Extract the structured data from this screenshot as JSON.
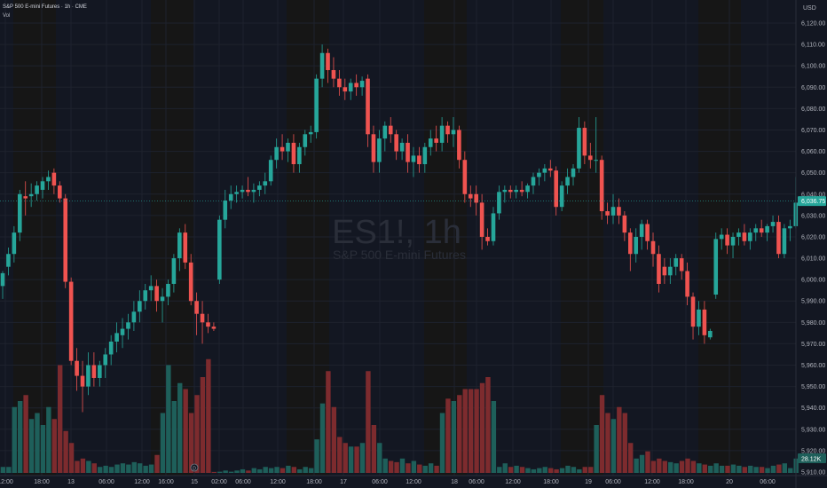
{
  "header": {
    "symbol_line": "S&P 500 E-mini Futures · 1h · CME",
    "volume_label": "Vol"
  },
  "watermark": {
    "ticker": "ES1!, 1h",
    "name": "S&P 500 E-mini Futures"
  },
  "colors": {
    "up": "#26a69a",
    "down": "#ef5350",
    "up_volume": "#1e5f5a",
    "down_volume": "#7d2b2e",
    "background": "#131722",
    "session_shade": "#161616",
    "price_tag": "#26a69a",
    "volume_tag": "#1e5f5a"
  },
  "chart_data": {
    "type": "candlestick",
    "currency": "USD",
    "y_ticks": [
      "6,120.00",
      "6,110.00",
      "6,100.00",
      "6,090.00",
      "6,080.00",
      "6,070.00",
      "6,060.00",
      "6,050.00",
      "6,040.00",
      "6,030.00",
      "6,020.00",
      "6,010.00",
      "6,000.00",
      "5,990.00",
      "5,980.00",
      "5,970.00",
      "5,960.00",
      "5,950.00",
      "5,940.00",
      "5,930.00",
      "5,920.00",
      "5,910.00"
    ],
    "y_range": [
      5910,
      6120
    ],
    "x_ticks": [
      "12:00",
      "18:00",
      "13",
      "06:00",
      "12:00",
      "16:00",
      "15",
      "02:00",
      "06:00",
      "12:00",
      "18:00",
      "17",
      "06:00",
      "12:00",
      "18",
      "06:00",
      "12:00",
      "18:00",
      "19",
      "06:00",
      "12:00",
      "18:00",
      "20",
      "06:00"
    ],
    "last_price": "6,036.75",
    "last_volume": "28.12K",
    "session_marker": "D",
    "candles": [
      {
        "o": 5997,
        "h": 6004,
        "l": 5991,
        "c": 6003,
        "up": true
      },
      {
        "o": 6006,
        "h": 6015,
        "l": 6002,
        "c": 6012,
        "up": true
      },
      {
        "o": 6012,
        "h": 6025,
        "l": 6008,
        "c": 6022,
        "up": true
      },
      {
        "o": 6022,
        "h": 6042,
        "l": 6018,
        "c": 6040,
        "up": true
      },
      {
        "o": 6038,
        "h": 6046,
        "l": 6030,
        "c": 6039,
        "up": false
      },
      {
        "o": 6039,
        "h": 6045,
        "l": 6034,
        "c": 6040,
        "up": true
      },
      {
        "o": 6040,
        "h": 6046,
        "l": 6037,
        "c": 6044,
        "up": true
      },
      {
        "o": 6042,
        "h": 6048,
        "l": 6038,
        "c": 6046,
        "up": true
      },
      {
        "o": 6046,
        "h": 6051,
        "l": 6042,
        "c": 6048,
        "up": true
      },
      {
        "o": 6050,
        "h": 6052,
        "l": 6040,
        "c": 6044,
        "up": false
      },
      {
        "o": 6044,
        "h": 6046,
        "l": 6036,
        "c": 6038,
        "up": false
      },
      {
        "o": 6038,
        "h": 6040,
        "l": 5996,
        "c": 5999,
        "up": false
      },
      {
        "o": 5999,
        "h": 6001,
        "l": 5960,
        "c": 5962,
        "up": false
      },
      {
        "o": 5962,
        "h": 5968,
        "l": 5948,
        "c": 5955,
        "up": false
      },
      {
        "o": 5955,
        "h": 5962,
        "l": 5938,
        "c": 5950,
        "up": false
      },
      {
        "o": 5950,
        "h": 5966,
        "l": 5946,
        "c": 5960,
        "up": true
      },
      {
        "o": 5960,
        "h": 5966,
        "l": 5950,
        "c": 5954,
        "up": false
      },
      {
        "o": 5954,
        "h": 5962,
        "l": 5950,
        "c": 5960,
        "up": true
      },
      {
        "o": 5960,
        "h": 5968,
        "l": 5954,
        "c": 5965,
        "up": true
      },
      {
        "o": 5965,
        "h": 5974,
        "l": 5960,
        "c": 5971,
        "up": true
      },
      {
        "o": 5971,
        "h": 5980,
        "l": 5966,
        "c": 5975,
        "up": true
      },
      {
        "o": 5974,
        "h": 5982,
        "l": 5968,
        "c": 5977,
        "up": true
      },
      {
        "o": 5977,
        "h": 5984,
        "l": 5972,
        "c": 5980,
        "up": true
      },
      {
        "o": 5980,
        "h": 5990,
        "l": 5976,
        "c": 5985,
        "up": true
      },
      {
        "o": 5985,
        "h": 5995,
        "l": 5980,
        "c": 5990,
        "up": true
      },
      {
        "o": 5990,
        "h": 5998,
        "l": 5986,
        "c": 5995,
        "up": true
      },
      {
        "o": 5995,
        "h": 6002,
        "l": 5990,
        "c": 5997,
        "up": true
      },
      {
        "o": 5997,
        "h": 6000,
        "l": 5985,
        "c": 5990,
        "up": false
      },
      {
        "o": 5990,
        "h": 5996,
        "l": 5980,
        "c": 5992,
        "up": true
      },
      {
        "o": 5992,
        "h": 6000,
        "l": 5988,
        "c": 5998,
        "up": true
      },
      {
        "o": 5998,
        "h": 6012,
        "l": 5994,
        "c": 6010,
        "up": true
      },
      {
        "o": 6010,
        "h": 6024,
        "l": 6004,
        "c": 6022,
        "up": true
      },
      {
        "o": 6022,
        "h": 6026,
        "l": 6005,
        "c": 6008,
        "up": false
      },
      {
        "o": 6008,
        "h": 6012,
        "l": 5988,
        "c": 5990,
        "up": false
      },
      {
        "o": 5990,
        "h": 5994,
        "l": 5974,
        "c": 5984,
        "up": false
      },
      {
        "o": 5984,
        "h": 5990,
        "l": 5970,
        "c": 5980,
        "up": false
      },
      {
        "o": 5980,
        "h": 5984,
        "l": 5975,
        "c": 5978,
        "up": false
      },
      {
        "o": 5978,
        "h": 5980,
        "l": 5976,
        "c": 5977,
        "up": false
      },
      {
        "o": 6000,
        "h": 6030,
        "l": 5998,
        "c": 6028,
        "up": true
      },
      {
        "o": 6028,
        "h": 6042,
        "l": 6024,
        "c": 6037,
        "up": true
      },
      {
        "o": 6037,
        "h": 6044,
        "l": 6033,
        "c": 6040,
        "up": true
      },
      {
        "o": 6040,
        "h": 6044,
        "l": 6036,
        "c": 6041,
        "up": true
      },
      {
        "o": 6041,
        "h": 6044,
        "l": 6038,
        "c": 6042,
        "up": true
      },
      {
        "o": 6042,
        "h": 6048,
        "l": 6039,
        "c": 6041,
        "up": false
      },
      {
        "o": 6041,
        "h": 6045,
        "l": 6036,
        "c": 6042,
        "up": true
      },
      {
        "o": 6042,
        "h": 6046,
        "l": 6039,
        "c": 6044,
        "up": true
      },
      {
        "o": 6044,
        "h": 6050,
        "l": 6040,
        "c": 6046,
        "up": true
      },
      {
        "o": 6046,
        "h": 6058,
        "l": 6044,
        "c": 6056,
        "up": true
      },
      {
        "o": 6056,
        "h": 6066,
        "l": 6052,
        "c": 6062,
        "up": true
      },
      {
        "o": 6062,
        "h": 6068,
        "l": 6056,
        "c": 6060,
        "up": false
      },
      {
        "o": 6060,
        "h": 6066,
        "l": 6055,
        "c": 6064,
        "up": true
      },
      {
        "o": 6064,
        "h": 6068,
        "l": 6050,
        "c": 6054,
        "up": false
      },
      {
        "o": 6054,
        "h": 6064,
        "l": 6050,
        "c": 6062,
        "up": true
      },
      {
        "o": 6062,
        "h": 6070,
        "l": 6058,
        "c": 6068,
        "up": true
      },
      {
        "o": 6068,
        "h": 6072,
        "l": 6064,
        "c": 6069,
        "up": true
      },
      {
        "o": 6069,
        "h": 6096,
        "l": 6066,
        "c": 6094,
        "up": true
      },
      {
        "o": 6094,
        "h": 6110,
        "l": 6090,
        "c": 6106,
        "up": true
      },
      {
        "o": 6106,
        "h": 6108,
        "l": 6092,
        "c": 6098,
        "up": false
      },
      {
        "o": 6098,
        "h": 6104,
        "l": 6090,
        "c": 6094,
        "up": false
      },
      {
        "o": 6094,
        "h": 6098,
        "l": 6086,
        "c": 6090,
        "up": false
      },
      {
        "o": 6090,
        "h": 6094,
        "l": 6084,
        "c": 6088,
        "up": false
      },
      {
        "o": 6088,
        "h": 6094,
        "l": 6084,
        "c": 6092,
        "up": true
      },
      {
        "o": 6092,
        "h": 6096,
        "l": 6086,
        "c": 6090,
        "up": false
      },
      {
        "o": 6090,
        "h": 6095,
        "l": 6086,
        "c": 6093,
        "up": true
      },
      {
        "o": 6094,
        "h": 6096,
        "l": 6062,
        "c": 6068,
        "up": false
      },
      {
        "o": 6068,
        "h": 6072,
        "l": 6050,
        "c": 6055,
        "up": false
      },
      {
        "o": 6055,
        "h": 6070,
        "l": 6050,
        "c": 6066,
        "up": true
      },
      {
        "o": 6066,
        "h": 6074,
        "l": 6060,
        "c": 6072,
        "up": true
      },
      {
        "o": 6072,
        "h": 6076,
        "l": 6064,
        "c": 6068,
        "up": false
      },
      {
        "o": 6068,
        "h": 6070,
        "l": 6056,
        "c": 6060,
        "up": false
      },
      {
        "o": 6060,
        "h": 6066,
        "l": 6056,
        "c": 6064,
        "up": true
      },
      {
        "o": 6064,
        "h": 6068,
        "l": 6050,
        "c": 6055,
        "up": false
      },
      {
        "o": 6055,
        "h": 6062,
        "l": 6048,
        "c": 6058,
        "up": true
      },
      {
        "o": 6058,
        "h": 6062,
        "l": 6050,
        "c": 6054,
        "up": false
      },
      {
        "o": 6054,
        "h": 6064,
        "l": 6050,
        "c": 6062,
        "up": true
      },
      {
        "o": 6062,
        "h": 6070,
        "l": 6058,
        "c": 6066,
        "up": true
      },
      {
        "o": 6066,
        "h": 6072,
        "l": 6060,
        "c": 6064,
        "up": false
      },
      {
        "o": 6064,
        "h": 6076,
        "l": 6060,
        "c": 6072,
        "up": true
      },
      {
        "o": 6072,
        "h": 6074,
        "l": 6064,
        "c": 6068,
        "up": false
      },
      {
        "o": 6068,
        "h": 6076,
        "l": 6062,
        "c": 6070,
        "up": true
      },
      {
        "o": 6070,
        "h": 6072,
        "l": 6052,
        "c": 6056,
        "up": false
      },
      {
        "o": 6056,
        "h": 6060,
        "l": 6036,
        "c": 6040,
        "up": false
      },
      {
        "o": 6040,
        "h": 6044,
        "l": 6034,
        "c": 6038,
        "up": false
      },
      {
        "o": 6040,
        "h": 6044,
        "l": 6030,
        "c": 6036,
        "up": false
      },
      {
        "o": 6036,
        "h": 6040,
        "l": 6014,
        "c": 6020,
        "up": false
      },
      {
        "o": 6020,
        "h": 6024,
        "l": 6016,
        "c": 6018,
        "up": false
      },
      {
        "o": 6018,
        "h": 6034,
        "l": 6016,
        "c": 6031,
        "up": true
      },
      {
        "o": 6031,
        "h": 6044,
        "l": 6028,
        "c": 6041,
        "up": true
      },
      {
        "o": 6041,
        "h": 6044,
        "l": 6036,
        "c": 6042,
        "up": true
      },
      {
        "o": 6042,
        "h": 6044,
        "l": 6038,
        "c": 6041,
        "up": false
      },
      {
        "o": 6041,
        "h": 6044,
        "l": 6038,
        "c": 6042,
        "up": true
      },
      {
        "o": 6042,
        "h": 6046,
        "l": 6039,
        "c": 6041,
        "up": false
      },
      {
        "o": 6041,
        "h": 6045,
        "l": 6038,
        "c": 6044,
        "up": true
      },
      {
        "o": 6044,
        "h": 6050,
        "l": 6040,
        "c": 6048,
        "up": true
      },
      {
        "o": 6048,
        "h": 6052,
        "l": 6044,
        "c": 6050,
        "up": true
      },
      {
        "o": 6050,
        "h": 6054,
        "l": 6046,
        "c": 6052,
        "up": true
      },
      {
        "o": 6052,
        "h": 6056,
        "l": 6048,
        "c": 6051,
        "up": false
      },
      {
        "o": 6051,
        "h": 6053,
        "l": 6030,
        "c": 6034,
        "up": false
      },
      {
        "o": 6034,
        "h": 6046,
        "l": 6032,
        "c": 6044,
        "up": true
      },
      {
        "o": 6044,
        "h": 6052,
        "l": 6040,
        "c": 6048,
        "up": true
      },
      {
        "o": 6048,
        "h": 6054,
        "l": 6044,
        "c": 6052,
        "up": true
      },
      {
        "o": 6052,
        "h": 6076,
        "l": 6050,
        "c": 6071,
        "up": true
      },
      {
        "o": 6071,
        "h": 6074,
        "l": 6054,
        "c": 6058,
        "up": false
      },
      {
        "o": 6058,
        "h": 6064,
        "l": 6052,
        "c": 6056,
        "up": false
      },
      {
        "o": 6056,
        "h": 6076,
        "l": 6050,
        "c": 6056,
        "up": true
      },
      {
        "o": 6056,
        "h": 6058,
        "l": 6028,
        "c": 6032,
        "up": false
      },
      {
        "o": 6032,
        "h": 6036,
        "l": 6026,
        "c": 6030,
        "up": false
      },
      {
        "o": 6030,
        "h": 6040,
        "l": 6026,
        "c": 6034,
        "up": true
      },
      {
        "o": 6034,
        "h": 6038,
        "l": 6026,
        "c": 6030,
        "up": false
      },
      {
        "o": 6030,
        "h": 6032,
        "l": 6018,
        "c": 6022,
        "up": false
      },
      {
        "o": 6022,
        "h": 6024,
        "l": 6004,
        "c": 6012,
        "up": false
      },
      {
        "o": 6012,
        "h": 6024,
        "l": 6008,
        "c": 6020,
        "up": true
      },
      {
        "o": 6020,
        "h": 6028,
        "l": 6014,
        "c": 6026,
        "up": true
      },
      {
        "o": 6026,
        "h": 6028,
        "l": 6014,
        "c": 6018,
        "up": false
      },
      {
        "o": 6018,
        "h": 6022,
        "l": 6006,
        "c": 6012,
        "up": false
      },
      {
        "o": 6012,
        "h": 6016,
        "l": 5994,
        "c": 5998,
        "up": false
      },
      {
        "o": 6006,
        "h": 6010,
        "l": 5998,
        "c": 6002,
        "up": false
      },
      {
        "o": 6002,
        "h": 6010,
        "l": 5998,
        "c": 6006,
        "up": true
      },
      {
        "o": 6006,
        "h": 6012,
        "l": 6002,
        "c": 6010,
        "up": true
      },
      {
        "o": 6010,
        "h": 6012,
        "l": 6000,
        "c": 6004,
        "up": false
      },
      {
        "o": 6004,
        "h": 6008,
        "l": 5988,
        "c": 5992,
        "up": false
      },
      {
        "o": 5992,
        "h": 5994,
        "l": 5972,
        "c": 5978,
        "up": false
      },
      {
        "o": 5978,
        "h": 5990,
        "l": 5974,
        "c": 5986,
        "up": true
      },
      {
        "o": 5986,
        "h": 5990,
        "l": 5970,
        "c": 5974,
        "up": false
      },
      {
        "o": 5973,
        "h": 5977,
        "l": 5972,
        "c": 5976,
        "up": true
      },
      {
        "o": 5993,
        "h": 6022,
        "l": 5991,
        "c": 6019,
        "up": true
      },
      {
        "o": 6019,
        "h": 6024,
        "l": 6014,
        "c": 6021,
        "up": true
      },
      {
        "o": 6021,
        "h": 6024,
        "l": 6012,
        "c": 6016,
        "up": false
      },
      {
        "o": 6016,
        "h": 6022,
        "l": 6010,
        "c": 6020,
        "up": true
      },
      {
        "o": 6020,
        "h": 6024,
        "l": 6016,
        "c": 6022,
        "up": true
      },
      {
        "o": 6022,
        "h": 6026,
        "l": 6016,
        "c": 6018,
        "up": false
      },
      {
        "o": 6018,
        "h": 6024,
        "l": 6014,
        "c": 6022,
        "up": true
      },
      {
        "o": 6022,
        "h": 6026,
        "l": 6018,
        "c": 6024,
        "up": true
      },
      {
        "o": 6024,
        "h": 6028,
        "l": 6020,
        "c": 6022,
        "up": false
      },
      {
        "o": 6022,
        "h": 6026,
        "l": 6018,
        "c": 6025,
        "up": true
      },
      {
        "o": 6025,
        "h": 6030,
        "l": 6022,
        "c": 6027,
        "up": true
      },
      {
        "o": 6027,
        "h": 6030,
        "l": 6010,
        "c": 6012,
        "up": false
      },
      {
        "o": 6012,
        "h": 6026,
        "l": 6010,
        "c": 6024,
        "up": true
      },
      {
        "o": 6024,
        "h": 6028,
        "l": 6018,
        "c": 6025,
        "up": true
      },
      {
        "o": 6025,
        "h": 6048,
        "l": 6024,
        "c": 6036,
        "up": true
      }
    ],
    "volumes": [
      0.05,
      0.05,
      0.55,
      0.6,
      0.65,
      0.45,
      0.5,
      0.4,
      0.55,
      0.45,
      0.9,
      0.35,
      0.25,
      0.1,
      0.12,
      0.1,
      0.08,
      0.05,
      0.06,
      0.05,
      0.07,
      0.08,
      0.07,
      0.09,
      0.08,
      0.06,
      0.07,
      0.15,
      0.5,
      0.9,
      0.6,
      0.75,
      0.7,
      0.5,
      0.65,
      0.8,
      0.95,
      0.0,
      0.01,
      0.02,
      0.01,
      0.02,
      0.03,
      0.02,
      0.04,
      0.03,
      0.05,
      0.04,
      0.05,
      0.04,
      0.06,
      0.05,
      0.03,
      0.05,
      0.04,
      0.28,
      0.58,
      0.85,
      0.55,
      0.3,
      0.25,
      0.22,
      0.22,
      0.25,
      0.85,
      0.4,
      0.25,
      0.12,
      0.1,
      0.09,
      0.12,
      0.08,
      0.1,
      0.07,
      0.06,
      0.08,
      0.06,
      0.5,
      0.62,
      0.6,
      0.65,
      0.7,
      0.7,
      0.7,
      0.75,
      0.8,
      0.6,
      0.05,
      0.08,
      0.05,
      0.06,
      0.05,
      0.04,
      0.03,
      0.04,
      0.05,
      0.04,
      0.03,
      0.04,
      0.06,
      0.05,
      0.03,
      0.05,
      0.05,
      0.4,
      0.65,
      0.5,
      0.45,
      0.55,
      0.5,
      0.25,
      0.12,
      0.15,
      0.18,
      0.1,
      0.12,
      0.1,
      0.09,
      0.08,
      0.1,
      0.12,
      0.1,
      0.08,
      0.07,
      0.06,
      0.08,
      0.06,
      0.06,
      0.07,
      0.06,
      0.05,
      0.06,
      0.05,
      0.05,
      0.04,
      0.06,
      0.07,
      0.08,
      0.04,
      0.12
    ]
  }
}
